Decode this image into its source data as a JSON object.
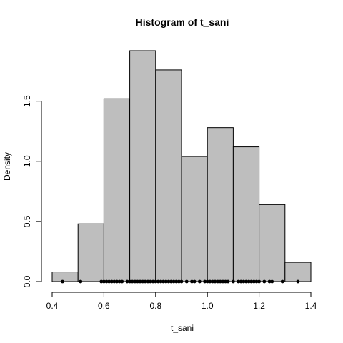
{
  "chart_data": {
    "type": "bar",
    "title": "Histogram of t_sani",
    "xlabel": "t_sani",
    "ylabel": "Density",
    "xlim": [
      0.4,
      1.4
    ],
    "ylim": [
      0,
      1.92
    ],
    "bin_edges": [
      0.4,
      0.5,
      0.6,
      0.7,
      0.8,
      0.9,
      1.0,
      1.1,
      1.2,
      1.3,
      1.4
    ],
    "values": [
      0.08,
      0.48,
      1.52,
      1.92,
      1.76,
      1.04,
      1.28,
      1.12,
      0.64,
      0.16
    ],
    "xticks": [
      "0.4",
      "0.6",
      "0.8",
      "1.0",
      "1.2",
      "1.4"
    ],
    "yticks": [
      "0.0",
      "0.5",
      "1.0",
      "1.5"
    ],
    "rug_points": [
      0.44,
      0.51,
      0.59,
      0.6,
      0.61,
      0.62,
      0.63,
      0.64,
      0.65,
      0.66,
      0.67,
      0.69,
      0.7,
      0.71,
      0.72,
      0.73,
      0.74,
      0.75,
      0.76,
      0.77,
      0.78,
      0.79,
      0.8,
      0.81,
      0.82,
      0.83,
      0.84,
      0.85,
      0.86,
      0.87,
      0.88,
      0.89,
      0.9,
      0.92,
      0.94,
      0.95,
      0.97,
      0.99,
      1.0,
      1.01,
      1.02,
      1.03,
      1.04,
      1.05,
      1.06,
      1.07,
      1.08,
      1.1,
      1.12,
      1.13,
      1.14,
      1.15,
      1.16,
      1.17,
      1.18,
      1.19,
      1.2,
      1.22,
      1.24,
      1.25,
      1.29,
      1.35
    ],
    "colors": {
      "bar_fill": "#bebebe",
      "bar_stroke": "#000000",
      "rug": "#000000"
    }
  }
}
